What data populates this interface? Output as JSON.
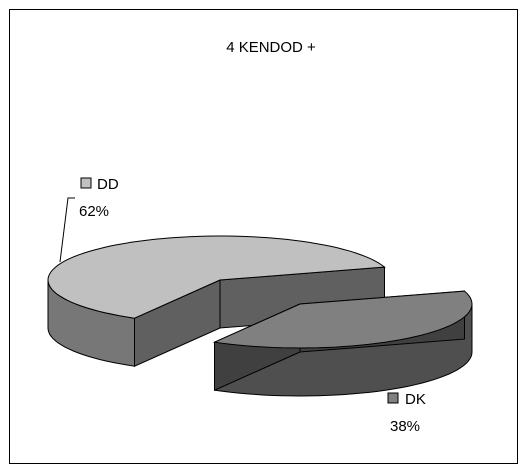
{
  "chart_data": {
    "type": "pie",
    "style": "3d-exploded",
    "title": "4 KENDOD +",
    "legend_placement": "labels-beside-slices",
    "slices": [
      {
        "name": "DD",
        "value": 62,
        "label": "62%",
        "color": "#c0c0c0"
      },
      {
        "name": "DK",
        "value": 38,
        "label": "38%",
        "color": "#808080"
      }
    ]
  }
}
